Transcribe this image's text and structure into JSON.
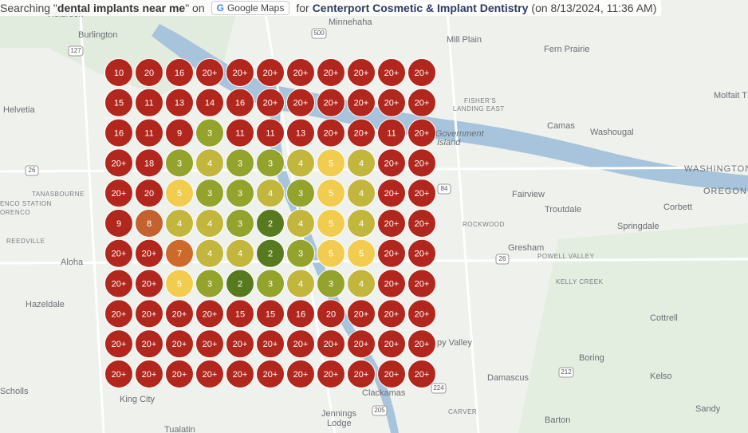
{
  "header": {
    "prefix": "Searching \"",
    "query": "dental implants near me",
    "mid": "\" on",
    "button": "Google Maps",
    "for": "for",
    "business": "Centerport Cosmetic & Implant Dentistry",
    "date": "(on 8/13/2024, 11:36 AM)"
  },
  "map": {
    "labels": [
      "Holbrook",
      "Burlington",
      "Helvetia",
      "TANASBOURNE",
      "ENCO STATION",
      "ORENCO",
      "REEDVILLE",
      "Aloha",
      "Hazeldale",
      "Scholls",
      "King City",
      "Tualatin",
      "Minnehaha",
      "Mill Plain",
      "Fern Prairie",
      "Molfait T",
      "FISHER'S",
      "LANDING EAST",
      "Camas",
      "Washougal",
      "Government",
      "Island",
      "WASHINGTON",
      "OREGON",
      "Fairview",
      "Corbett",
      "Troutdale",
      "ROCKWOOD",
      "Springdale",
      "Gresham",
      "POWELL VALLEY",
      "KELLY CREEK",
      "Cottrell",
      "Boring",
      "Kelso",
      "Damascus",
      "Sandy",
      "Barton",
      "CARVER",
      "Clackamas",
      "Jennings",
      "Lodge",
      "py Valley"
    ],
    "shields": [
      "500",
      "127",
      "26",
      "84",
      "26",
      "212",
      "205",
      "224"
    ]
  },
  "grid": {
    "rows": [
      [
        "10",
        "20",
        "16",
        "20+",
        "20+",
        "20+",
        "20+",
        "20+",
        "20+",
        "20+",
        "20+"
      ],
      [
        "15",
        "11",
        "13",
        "14",
        "16",
        "20+",
        "20+",
        "20+",
        "20+",
        "20+",
        "20+"
      ],
      [
        "16",
        "11",
        "9",
        "3",
        "11",
        "11",
        "13",
        "20+",
        "20+",
        "11",
        "20+"
      ],
      [
        "20+",
        "18",
        "3",
        "4",
        "3",
        "3",
        "4",
        "5",
        "4",
        "20+",
        "20+"
      ],
      [
        "20+",
        "20",
        "5",
        "3",
        "3",
        "4",
        "3",
        "5",
        "4",
        "20+",
        "20+"
      ],
      [
        "9",
        "8",
        "4",
        "4",
        "3",
        "2",
        "4",
        "5",
        "4",
        "20+",
        "20+"
      ],
      [
        "20+",
        "20+",
        "7",
        "4",
        "4",
        "2",
        "3",
        "5",
        "5",
        "20+",
        "20+"
      ],
      [
        "20+",
        "20+",
        "5",
        "3",
        "2",
        "3",
        "4",
        "3",
        "4",
        "20+",
        "20+"
      ],
      [
        "20+",
        "20+",
        "20+",
        "20+",
        "15",
        "15",
        "16",
        "20",
        "20+",
        "20+",
        "20+"
      ],
      [
        "20+",
        "20+",
        "20+",
        "20+",
        "20+",
        "20+",
        "20+",
        "20+",
        "20+",
        "20+",
        "20+"
      ],
      [
        "20+",
        "20+",
        "20+",
        "20+",
        "20+",
        "20+",
        "20+",
        "20+",
        "20+",
        "20+",
        "20+"
      ]
    ],
    "palette": {
      "2": "#587a1f",
      "3": "#93a32c",
      "4": "#c3b63d",
      "5": "#f1cc4e",
      "7": "#cd6a2b",
      "8": "#c3612f",
      "9": "#b1261d",
      "10": "#b1261d",
      "11": "#b1261d",
      "13": "#b1261d",
      "14": "#b1261d",
      "15": "#b1261d",
      "16": "#b1261d",
      "18": "#b1261d",
      "20": "#b1261d",
      "20+": "#b1261d"
    }
  }
}
